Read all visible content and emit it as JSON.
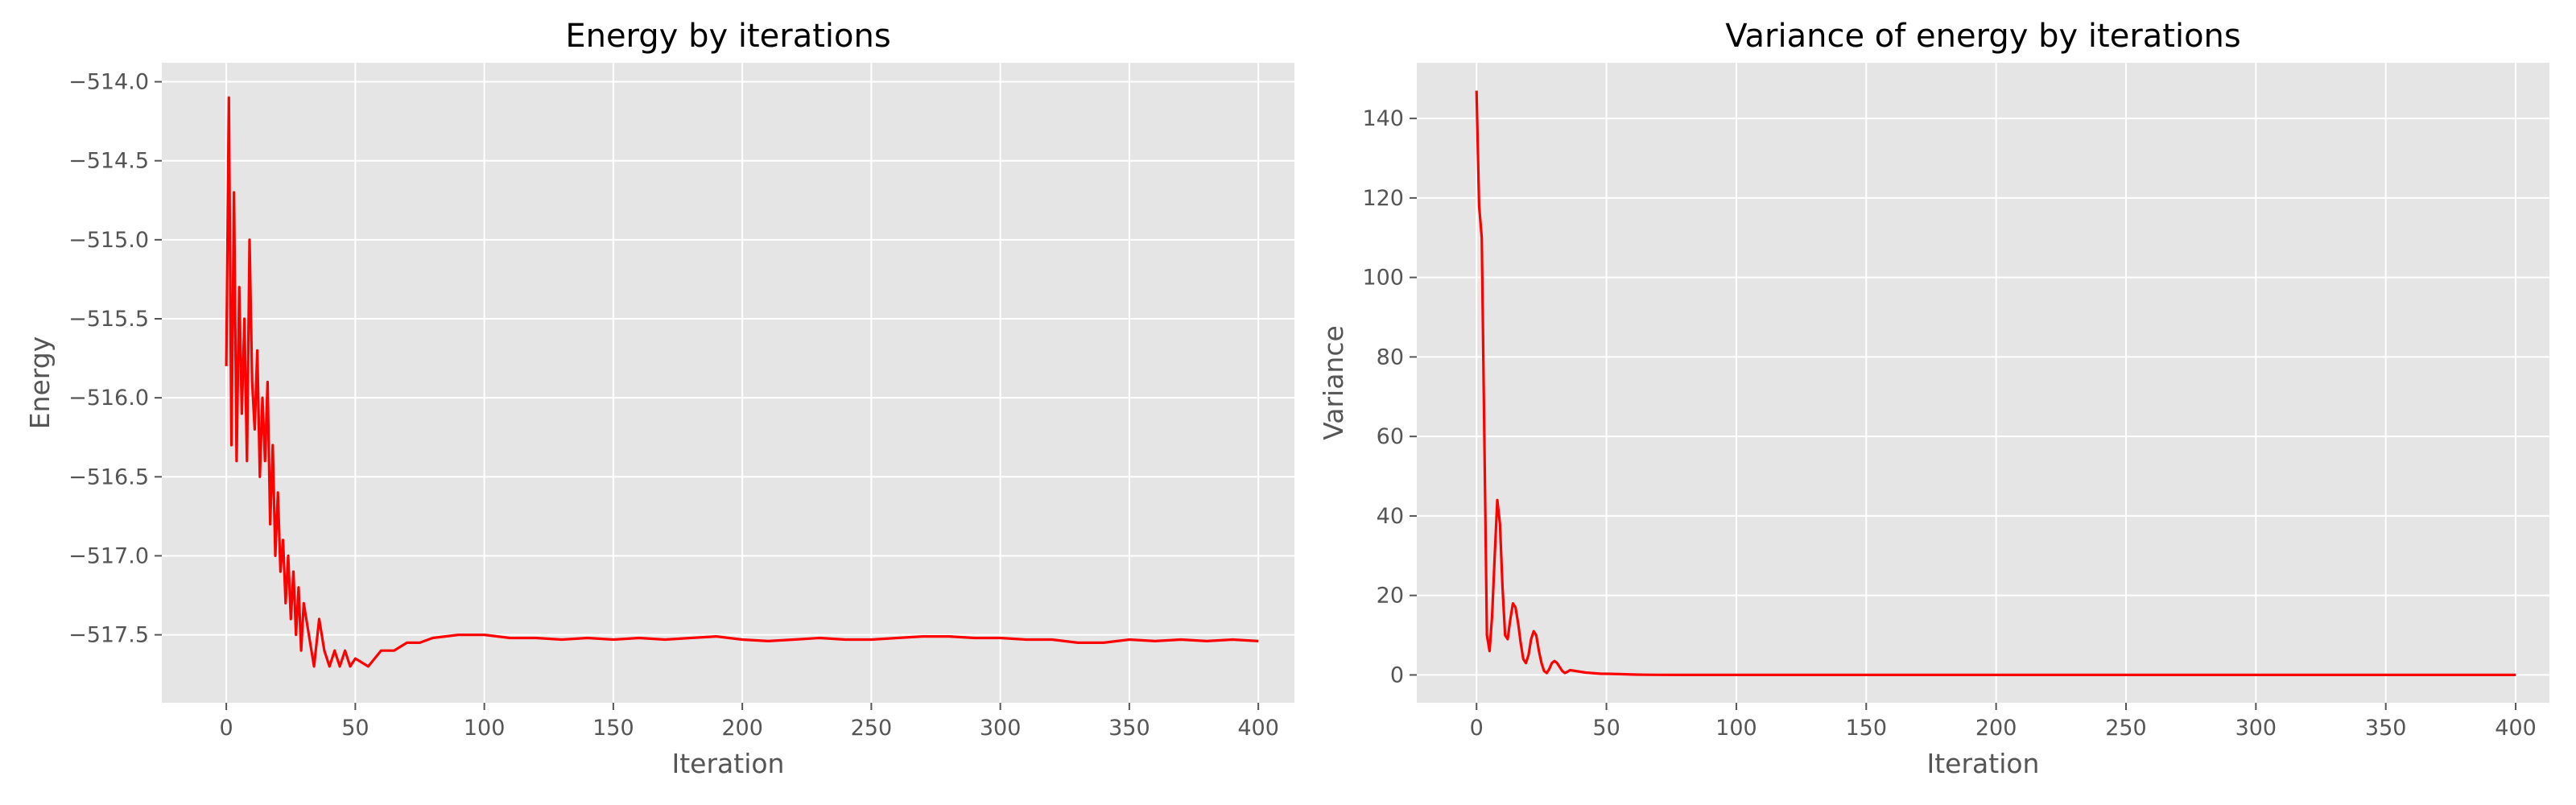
{
  "chart_data": [
    {
      "type": "line",
      "title": "Energy by iterations",
      "xlabel": "Iteration",
      "ylabel": "Energy",
      "xlim": [
        -25,
        414
      ],
      "ylim": [
        -517.93,
        -513.88
      ],
      "x_ticks": [
        0,
        50,
        100,
        150,
        200,
        250,
        300,
        350,
        400
      ],
      "y_ticks": [
        -514.0,
        -514.5,
        -515.0,
        -515.5,
        -516.0,
        -516.5,
        -517.0,
        -517.5
      ],
      "y_tick_labels": [
        "−514.0",
        "−514.5",
        "−515.0",
        "−515.5",
        "−516.0",
        "−516.5",
        "−517.0",
        "−517.5"
      ],
      "grid": true,
      "line_color": "#FF0000",
      "series": [
        {
          "x": [
            0,
            1,
            2,
            3,
            4,
            5,
            6,
            7,
            8,
            9,
            10,
            11,
            12,
            13,
            14,
            15,
            16,
            17,
            18,
            19,
            20,
            21,
            22,
            23,
            24,
            25,
            26,
            27,
            28,
            29,
            30,
            32,
            34,
            36,
            38,
            40,
            42,
            44,
            46,
            48,
            50,
            55,
            60,
            65,
            70,
            75,
            80,
            90,
            100,
            110,
            120,
            130,
            140,
            150,
            160,
            170,
            180,
            190,
            200,
            210,
            220,
            230,
            240,
            250,
            260,
            270,
            280,
            290,
            300,
            310,
            320,
            330,
            340,
            350,
            360,
            370,
            380,
            390,
            400
          ],
          "values": [
            -515.8,
            -514.1,
            -516.3,
            -514.7,
            -516.4,
            -515.3,
            -516.1,
            -515.5,
            -516.4,
            -515.0,
            -515.9,
            -516.2,
            -515.7,
            -516.5,
            -516.0,
            -516.4,
            -515.9,
            -516.8,
            -516.3,
            -517.0,
            -516.6,
            -517.1,
            -516.9,
            -517.3,
            -517.0,
            -517.4,
            -517.1,
            -517.5,
            -517.2,
            -517.6,
            -517.3,
            -517.5,
            -517.7,
            -517.4,
            -517.6,
            -517.7,
            -517.6,
            -517.7,
            -517.6,
            -517.7,
            -517.65,
            -517.7,
            -517.6,
            -517.6,
            -517.55,
            -517.55,
            -517.52,
            -517.5,
            -517.5,
            -517.52,
            -517.52,
            -517.53,
            -517.52,
            -517.53,
            -517.52,
            -517.53,
            -517.52,
            -517.51,
            -517.53,
            -517.54,
            -517.53,
            -517.52,
            -517.53,
            -517.53,
            -517.52,
            -517.51,
            -517.51,
            -517.52,
            -517.52,
            -517.53,
            -517.53,
            -517.55,
            -517.55,
            -517.53,
            -517.54,
            -517.53,
            -517.54,
            -517.53,
            -517.54
          ]
        }
      ]
    },
    {
      "type": "line",
      "title": "Variance of energy by iterations",
      "xlabel": "Iteration",
      "ylabel": "Variance",
      "xlim": [
        -23,
        413
      ],
      "ylim": [
        -7,
        154
      ],
      "x_ticks": [
        0,
        50,
        100,
        150,
        200,
        250,
        300,
        350,
        400
      ],
      "y_ticks": [
        0,
        20,
        40,
        60,
        80,
        100,
        120,
        140
      ],
      "y_tick_labels": [
        "0",
        "20",
        "40",
        "60",
        "80",
        "100",
        "120",
        "140"
      ],
      "grid": true,
      "line_color": "#FF0000",
      "series": [
        {
          "x": [
            0,
            1,
            2,
            3,
            4,
            5,
            6,
            7,
            8,
            9,
            10,
            11,
            12,
            13,
            14,
            15,
            16,
            17,
            18,
            19,
            20,
            21,
            22,
            23,
            24,
            25,
            26,
            27,
            28,
            29,
            30,
            31,
            32,
            33,
            34,
            35,
            36,
            38,
            40,
            42,
            44,
            46,
            48,
            50,
            55,
            60,
            65,
            70,
            80,
            100,
            150,
            200,
            250,
            300,
            350,
            400
          ],
          "values": [
            147,
            118,
            110,
            60,
            10,
            6,
            15,
            30,
            44,
            38,
            22,
            10,
            9,
            14,
            18,
            17,
            13,
            8,
            4,
            3,
            5,
            9,
            11,
            10,
            6,
            3,
            1,
            0.5,
            1.5,
            3,
            3.5,
            3,
            2,
            1,
            0.5,
            0.8,
            1.2,
            1.0,
            0.8,
            0.6,
            0.5,
            0.4,
            0.3,
            0.3,
            0.2,
            0.1,
            0.05,
            0.02,
            0,
            0,
            0,
            0,
            0,
            0,
            0,
            0
          ]
        }
      ]
    }
  ]
}
